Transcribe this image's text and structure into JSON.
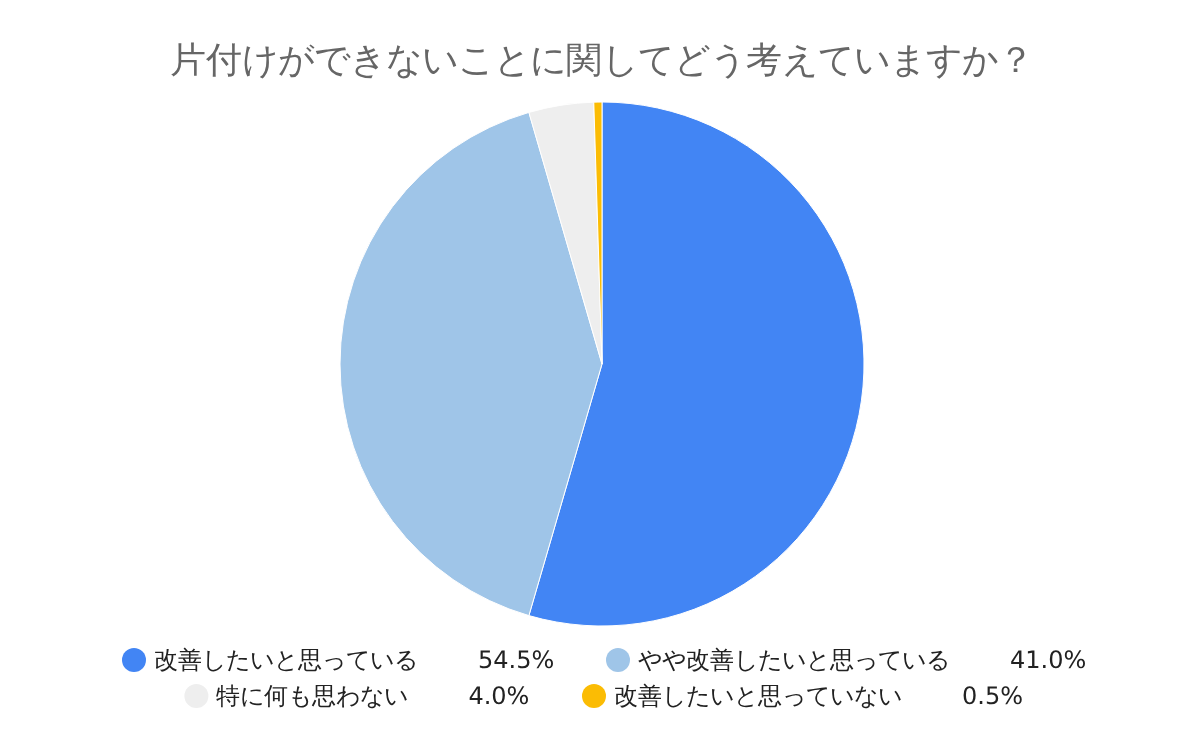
{
  "chart_data": {
    "type": "pie",
    "title": "片付けができないことに関してどう考えていますか？",
    "categories": [
      "改善したいと思っている",
      "やや改善したいと思っている",
      "特に何も思わない",
      "改善したいと思っていない"
    ],
    "values": [
      54.5,
      41.0,
      4.0,
      0.5
    ],
    "colors": [
      "#4285f4",
      "#9fc5e8",
      "#eeeeee",
      "#fbbc04"
    ],
    "value_labels": [
      "54.5%",
      "41.0%",
      "4.0%",
      "0.5%"
    ],
    "legend": "bottom"
  }
}
